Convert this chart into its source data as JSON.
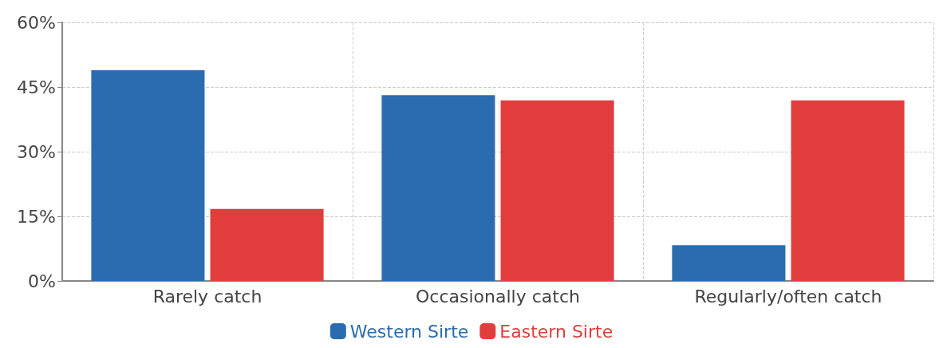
{
  "chart_data": {
    "type": "bar",
    "categories": [
      "Rarely catch",
      "Occasionally catch",
      "Regularly/often catch"
    ],
    "series": [
      {
        "name": "Western Sirte",
        "color": "#2b6cb0",
        "values": [
          48.9,
          43.1,
          8.3
        ]
      },
      {
        "name": "Eastern Sirte",
        "color": "#e23d3d",
        "values": [
          16.7,
          41.9,
          41.9
        ]
      }
    ],
    "ylim": [
      0,
      60
    ],
    "yticks": [
      {
        "value": 0,
        "label": "0%"
      },
      {
        "value": 15,
        "label": "15%"
      },
      {
        "value": 30,
        "label": "30%"
      },
      {
        "value": 45,
        "label": "45%"
      },
      {
        "value": 60,
        "label": "60%"
      }
    ],
    "grid": true,
    "legend": "bottom"
  }
}
